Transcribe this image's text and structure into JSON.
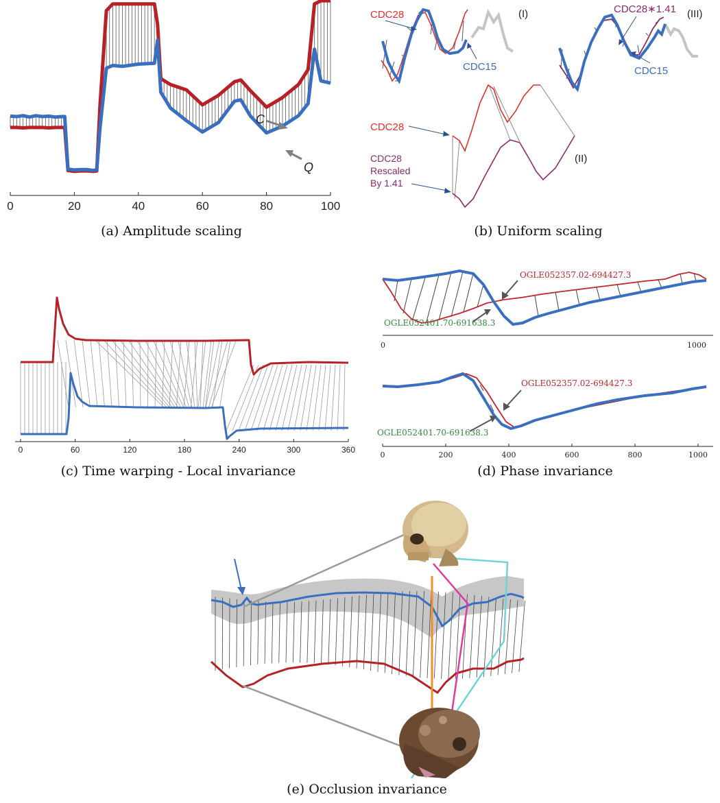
{
  "colors": {
    "red": "#b52127",
    "blue": "#3a6fc0",
    "purple": "#8a2a6e",
    "gray": "#bdbdbd",
    "green": "#2f8a3a",
    "cyan": "#6fd3d8",
    "orange": "#f0902a",
    "pink": "#e03aa0"
  },
  "icons": [
    "skull-icon-modern",
    "skull-icon-fossil",
    "arrow-icon"
  ],
  "panels": {
    "a": {
      "caption": "(a) Amplitude scaling",
      "label_c": "C",
      "label_q": "Q",
      "chart_data": {
        "type": "line",
        "x_ticks": [
          "0",
          "20",
          "40",
          "60",
          "80",
          "100"
        ],
        "xlim": [
          0,
          100
        ],
        "series": [
          {
            "name": "C",
            "x": [
              0,
              2,
              4,
              6,
              8,
              10,
              12,
              14,
              16,
              17,
              18,
              20,
              22,
              24,
              26,
              27,
              28,
              30,
              32,
              35,
              40,
              45,
              46,
              47,
              50,
              55,
              60,
              65,
              70,
              72,
              75,
              80,
              85,
              90,
              93,
              95,
              97,
              100
            ],
            "y": [
              1.32,
              1.32,
              1.31,
              1.32,
              1.32,
              1.32,
              1.31,
              1.32,
              1.32,
              1.32,
              0.37,
              0.35,
              0.36,
              0.36,
              0.35,
              0.36,
              1.8,
              3.9,
              4.05,
              4.05,
              4.05,
              4.05,
              3.6,
              2.4,
              2.27,
              2.15,
              1.82,
              2.03,
              2.33,
              2.37,
              2.13,
              1.77,
              1.98,
              2.27,
              2.6,
              4.05,
              4.12,
              4.12
            ]
          },
          {
            "name": "Q",
            "x": [
              0,
              2,
              4,
              6,
              8,
              10,
              12,
              14,
              16,
              17,
              18,
              20,
              22,
              24,
              26,
              27,
              28,
              30,
              32,
              35,
              40,
              45,
              46,
              47,
              50,
              55,
              60,
              65,
              70,
              72,
              75,
              80,
              85,
              90,
              93,
              95,
              97,
              100
            ],
            "y": [
              1.57,
              1.56,
              1.58,
              1.55,
              1.58,
              1.56,
              1.57,
              1.55,
              1.56,
              1.56,
              0.4,
              0.38,
              0.39,
              0.39,
              0.37,
              0.39,
              1.3,
              2.63,
              2.69,
              2.67,
              2.72,
              2.74,
              3.25,
              2.1,
              1.75,
              1.47,
              1.22,
              1.43,
              1.9,
              1.93,
              1.57,
              1.2,
              1.35,
              1.58,
              1.85,
              3.05,
              2.35,
              2.3
            ]
          }
        ]
      }
    },
    "b": {
      "caption": "(b) Uniform scaling",
      "lbl_I": "(I)",
      "lbl_II": "(II)",
      "lbl_III": "(III)",
      "cdc28": "CDC28",
      "cdc15": "CDC15",
      "cdc28_scaled": "CDC28∗1.41",
      "rescaled_1": "CDC28",
      "rescaled_2": "Rescaled",
      "rescaled_3": "By 1.41"
    },
    "c": {
      "caption": "(c) Time warping - Local invariance",
      "chart_data": {
        "type": "line",
        "x_ticks": [
          "0",
          "60",
          "120",
          "180",
          "240",
          "300",
          "360"
        ],
        "xlim": [
          0,
          360
        ]
      }
    },
    "d": {
      "caption": "(d) Phase invariance",
      "red_label": "OGLE052357.02-694427.3",
      "green_label": "OGLE052401.70-691638.3",
      "top_ticks": [
        "0",
        "1000"
      ],
      "bottom_ticks": [
        "0",
        "200",
        "400",
        "600",
        "800",
        "1000"
      ]
    },
    "e": {
      "caption": "(e) Occlusion invariance"
    }
  }
}
